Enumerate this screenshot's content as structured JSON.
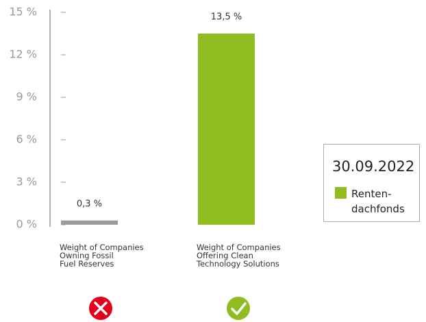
{
  "chart_data": {
    "type": "bar",
    "categories": [
      "Weight of Companies\nOwning Fossil\nFuel Reserves",
      "Weight of Companies\nOffering Clean\nTechnology Solutions"
    ],
    "series": [
      {
        "name": "Renten-\ndachfonds",
        "color": "#8fbc1f",
        "values": [
          0.3,
          13.5
        ],
        "value_labels": [
          "0,3 %",
          "13,5 %"
        ],
        "colors": [
          "#9b9b9b",
          "#8fbc1f"
        ]
      }
    ],
    "legend_title": "30.09.2022",
    "ylim": [
      0,
      15
    ],
    "yticks": [
      {
        "value": 0,
        "label": "0 %"
      },
      {
        "value": 3,
        "label": "3 %"
      },
      {
        "value": 6,
        "label": "6 %"
      },
      {
        "value": 9,
        "label": "9 %"
      },
      {
        "value": 12,
        "label": "12 %"
      },
      {
        "value": 15,
        "label": "15 %"
      }
    ],
    "legend": "right"
  }
}
